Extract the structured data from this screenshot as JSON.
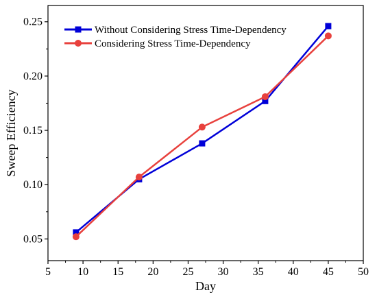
{
  "chart_data": {
    "type": "line",
    "xlabel": "Day",
    "ylabel": "Sweep Efficiency",
    "xlim": [
      5,
      50
    ],
    "ylim": [
      0.03,
      0.265
    ],
    "xticks": [
      5,
      10,
      15,
      20,
      25,
      30,
      35,
      40,
      45,
      50
    ],
    "yticks": [
      0.05,
      0.1,
      0.15,
      0.2,
      0.25
    ],
    "xtick_labels": [
      "5",
      "10",
      "15",
      "20",
      "25",
      "30",
      "35",
      "40",
      "45",
      "50"
    ],
    "ytick_labels": [
      "0.05",
      "0.10",
      "0.15",
      "0.20",
      "0.25"
    ],
    "grid": false,
    "legend_position": "top-left",
    "x": [
      9,
      18,
      27,
      36,
      45
    ],
    "series": [
      {
        "name": "Without Considering Stress Time-Dependency",
        "color": "#0000d8",
        "marker": "square",
        "values": [
          0.056,
          0.105,
          0.138,
          0.177,
          0.246
        ]
      },
      {
        "name": "Considering Stress Time-Dependency",
        "color": "#e8413d",
        "marker": "circle",
        "values": [
          0.052,
          0.107,
          0.153,
          0.181,
          0.237
        ]
      }
    ]
  }
}
